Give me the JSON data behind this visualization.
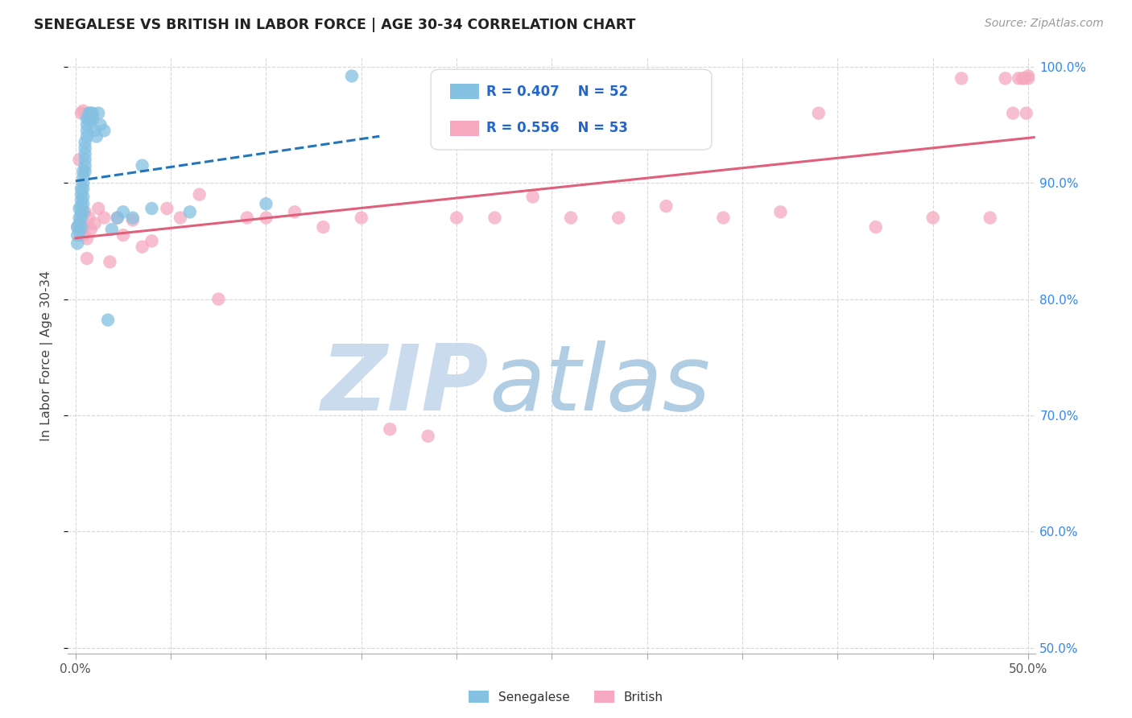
{
  "title": "SENEGALESE VS BRITISH IN LABOR FORCE | AGE 30-34 CORRELATION CHART",
  "source": "Source: ZipAtlas.com",
  "ylabel": "In Labor Force | Age 30-34",
  "xlim": [
    -0.004,
    0.504
  ],
  "ylim": [
    0.495,
    1.008
  ],
  "xticks": [
    0.0,
    0.05,
    0.1,
    0.15,
    0.2,
    0.25,
    0.3,
    0.35,
    0.4,
    0.45,
    0.5
  ],
  "yticks": [
    0.5,
    0.6,
    0.7,
    0.8,
    0.9,
    1.0
  ],
  "ytick_labels": [
    "50.0%",
    "60.0%",
    "70.0%",
    "80.0%",
    "90.0%",
    "100.0%"
  ],
  "xtick_labels": [
    "0.0%",
    "",
    "",
    "",
    "",
    "",
    "",
    "",
    "",
    "",
    "50.0%"
  ],
  "R_sen": "0.407",
  "N_sen": "52",
  "R_brit": "0.556",
  "N_brit": "53",
  "senegalese_color": "#85c1e2",
  "british_color": "#f5a8c0",
  "senegalese_line_color": "#2475b8",
  "british_line_color": "#e0607a",
  "watermark_zip_color": "#c5d8ec",
  "watermark_atlas_color": "#a8c8e0",
  "background_color": "#ffffff",
  "grid_color": "#d8d8d8",
  "sen_x": [
    0.001,
    0.001,
    0.001,
    0.002,
    0.002,
    0.002,
    0.002,
    0.003,
    0.003,
    0.003,
    0.003,
    0.003,
    0.003,
    0.003,
    0.004,
    0.004,
    0.004,
    0.004,
    0.004,
    0.004,
    0.004,
    0.005,
    0.005,
    0.005,
    0.005,
    0.005,
    0.005,
    0.006,
    0.006,
    0.006,
    0.006,
    0.007,
    0.007,
    0.008,
    0.008,
    0.009,
    0.009,
    0.01,
    0.011,
    0.012,
    0.013,
    0.015,
    0.017,
    0.019,
    0.022,
    0.025,
    0.03,
    0.035,
    0.04,
    0.06,
    0.1,
    0.145
  ],
  "sen_y": [
    0.848,
    0.855,
    0.862,
    0.878,
    0.87,
    0.865,
    0.858,
    0.895,
    0.89,
    0.885,
    0.88,
    0.875,
    0.87,
    0.862,
    0.91,
    0.905,
    0.9,
    0.895,
    0.888,
    0.882,
    0.875,
    0.935,
    0.93,
    0.925,
    0.92,
    0.915,
    0.91,
    0.955,
    0.95,
    0.945,
    0.94,
    0.96,
    0.955,
    0.96,
    0.955,
    0.96,
    0.955,
    0.945,
    0.94,
    0.96,
    0.95,
    0.945,
    0.782,
    0.86,
    0.87,
    0.875,
    0.87,
    0.915,
    0.878,
    0.875,
    0.882,
    0.992
  ],
  "brit_x": [
    0.001,
    0.002,
    0.003,
    0.003,
    0.004,
    0.004,
    0.005,
    0.005,
    0.006,
    0.006,
    0.007,
    0.008,
    0.01,
    0.012,
    0.015,
    0.018,
    0.022,
    0.025,
    0.03,
    0.035,
    0.04,
    0.048,
    0.055,
    0.065,
    0.075,
    0.09,
    0.1,
    0.115,
    0.13,
    0.15,
    0.165,
    0.185,
    0.2,
    0.22,
    0.24,
    0.26,
    0.285,
    0.31,
    0.34,
    0.37,
    0.39,
    0.42,
    0.45,
    0.465,
    0.48,
    0.488,
    0.492,
    0.495,
    0.497,
    0.498,
    0.499,
    0.5,
    0.5
  ],
  "brit_y": [
    0.862,
    0.92,
    0.87,
    0.96,
    0.855,
    0.962,
    0.875,
    0.862,
    0.852,
    0.835,
    0.87,
    0.86,
    0.865,
    0.878,
    0.87,
    0.832,
    0.87,
    0.855,
    0.868,
    0.845,
    0.85,
    0.878,
    0.87,
    0.89,
    0.8,
    0.87,
    0.87,
    0.875,
    0.862,
    0.87,
    0.688,
    0.682,
    0.87,
    0.87,
    0.888,
    0.87,
    0.87,
    0.88,
    0.87,
    0.875,
    0.96,
    0.862,
    0.87,
    0.99,
    0.87,
    0.99,
    0.96,
    0.99,
    0.99,
    0.99,
    0.96,
    0.992,
    0.99
  ]
}
